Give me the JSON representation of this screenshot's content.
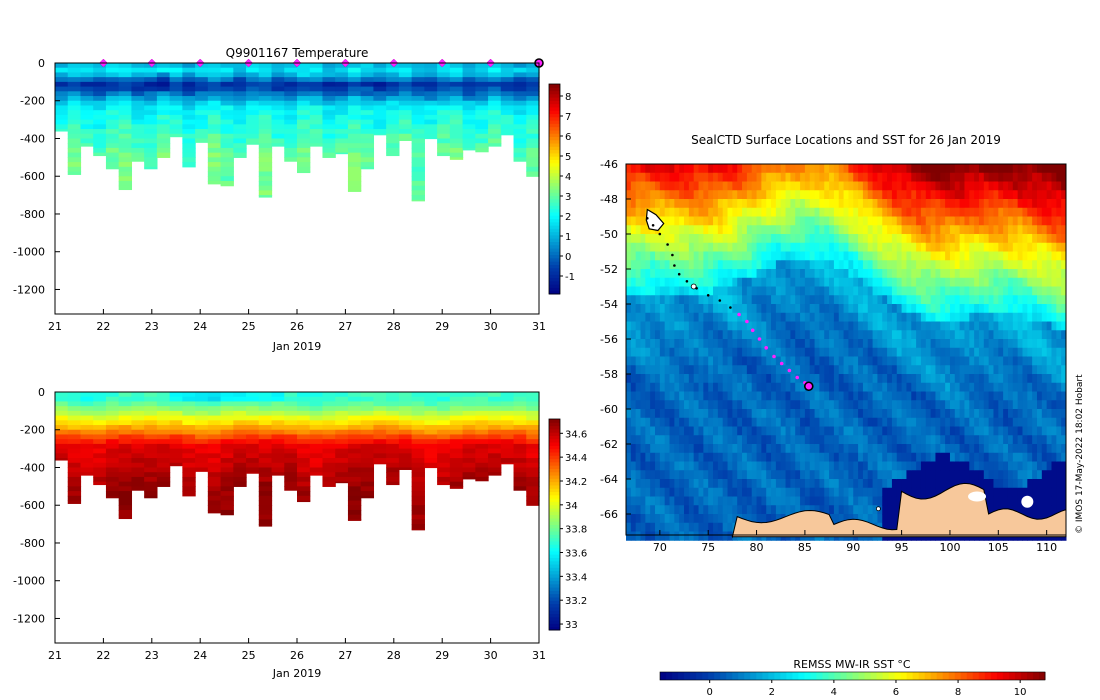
{
  "chart_data": [
    {
      "id": "temperature_section",
      "type": "heatmap",
      "title": "Q9901167  Temperature",
      "xlabel": "Jan 2019",
      "xlim": [
        21,
        31
      ],
      "x_ticks": [
        "21",
        "22",
        "23",
        "24",
        "25",
        "26",
        "27",
        "28",
        "29",
        "30",
        "31"
      ],
      "ylim": [
        -1330,
        0
      ],
      "y_ticks": [
        "0",
        "-200",
        "-400",
        "-600",
        "-800",
        "-1000",
        "-1200"
      ],
      "colorbar": {
        "min": -1.9,
        "max": 8.6,
        "ticks": [
          "-1",
          "0",
          "1",
          "2",
          "3",
          "4",
          "5",
          "6",
          "7",
          "8"
        ]
      },
      "surface_markers_days": [
        22,
        23,
        24,
        25,
        26,
        27,
        28,
        29,
        30
      ],
      "current_marker_day": 31,
      "profile_max_depths_m": [
        360,
        590,
        440,
        490,
        560,
        670,
        520,
        560,
        500,
        390,
        550,
        420,
        640,
        650,
        500,
        430,
        710,
        440,
        520,
        580,
        440,
        500,
        480,
        680,
        560,
        380,
        490,
        410,
        730,
        400,
        490,
        510,
        460,
        470,
        440,
        380,
        520,
        600
      ],
      "profile_summary": {
        "surface_C": "1 to 3",
        "min_layer_depth_m": "80 to 160",
        "min_layer_C": "-1.5 to 0",
        "deep_C": "2 to 3.2"
      }
    },
    {
      "id": "salinity_section",
      "type": "heatmap",
      "title": "",
      "xlabel": "Jan 2019",
      "xlim": [
        21,
        31
      ],
      "x_ticks": [
        "21",
        "22",
        "23",
        "24",
        "25",
        "26",
        "27",
        "28",
        "29",
        "30",
        "31"
      ],
      "ylim": [
        -1330,
        0
      ],
      "y_ticks": [
        "0",
        "-200",
        "-400",
        "-600",
        "-800",
        "-1000",
        "-1200"
      ],
      "colorbar": {
        "min": 32.95,
        "max": 34.72,
        "ticks": [
          "33",
          "33.2",
          "33.4",
          "33.6",
          "33.8",
          "34",
          "34.2",
          "34.4",
          "34.6"
        ]
      },
      "profile_summary": {
        "surface_psu": "33.6 to 33.8",
        "deep_psu": "34.6 to 34.7"
      }
    },
    {
      "id": "sst_map",
      "type": "heatmap",
      "title": "SealCTD Surface Locations and SST for 26 Jan 2019",
      "xlabel": "",
      "ylabel": "",
      "xlim": [
        66.5,
        112
      ],
      "ylim": [
        -67.2,
        -46
      ],
      "x_ticks": [
        "70",
        "75",
        "80",
        "85",
        "90",
        "95",
        "100",
        "105",
        "110"
      ],
      "y_ticks": [
        "-46",
        "-48",
        "-50",
        "-52",
        "-54",
        "-56",
        "-58",
        "-60",
        "-62",
        "-64",
        "-66"
      ],
      "colorbar_title": "REMSS MW-IR SST °C",
      "colorbar": {
        "min": -1.6,
        "max": 10.8,
        "ticks": [
          "0",
          "2",
          "4",
          "6",
          "8",
          "10"
        ]
      },
      "track_lon": [
        68.7,
        69.3,
        70.0,
        70.8,
        71.3,
        71.5,
        72.0,
        72.8,
        73.8,
        75.0,
        76.2,
        77.3,
        78.2,
        79.0,
        79.6,
        80.3,
        81.0,
        81.8,
        82.6,
        83.4,
        84.2,
        85.0,
        85.4
      ],
      "track_lat": [
        -49.1,
        -49.5,
        -50.0,
        -50.6,
        -51.2,
        -51.8,
        -52.3,
        -52.7,
        -53.1,
        -53.5,
        -53.8,
        -54.2,
        -54.6,
        -55.0,
        -55.5,
        -56.0,
        -56.5,
        -57.0,
        -57.4,
        -57.8,
        -58.2,
        -58.5,
        -58.7
      ],
      "track_recent_from_index": 12,
      "current_position": {
        "lon": 85.4,
        "lat": -58.7
      },
      "credit": "© IMOS 17-May-2022 18:02 Hobart"
    }
  ]
}
